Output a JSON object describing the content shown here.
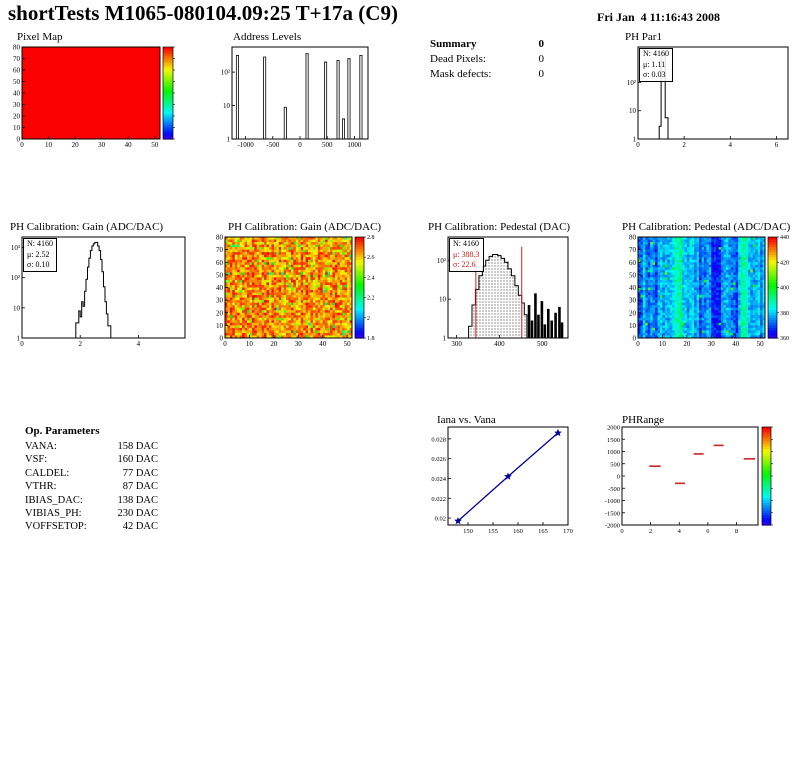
{
  "header": {
    "title": "shortTests M1065-080104.09:25 T+17a (C9)",
    "date": "Fri Jan  4 11:16:43 2008"
  },
  "summary": {
    "title": "Summary",
    "total": "0",
    "rows": [
      {
        "label": "Dead Pixels:",
        "value": "0"
      },
      {
        "label": "Mask defects:",
        "value": "0"
      }
    ]
  },
  "op_parameters": {
    "title": "Op. Parameters",
    "rows": [
      {
        "label": "VANA:",
        "value": "158 DAC"
      },
      {
        "label": "VSF:",
        "value": "160 DAC"
      },
      {
        "label": "CALDEL:",
        "value": "77 DAC"
      },
      {
        "label": "VTHR:",
        "value": "87 DAC"
      },
      {
        "label": "IBIAS_DAC:",
        "value": "138 DAC"
      },
      {
        "label": "VIBIAS_PH:",
        "value": "230 DAC"
      },
      {
        "label": "VOFFSETOP:",
        "value": "42 DAC"
      }
    ]
  },
  "colors": {
    "uniform_red": "#fa0000",
    "accent_red": "#d42020",
    "line_blue": "#00009a"
  },
  "chart_data": [
    {
      "id": "pixel-map",
      "type": "uniform-heatmap",
      "title": "Pixel Map",
      "xlim": [
        0,
        52
      ],
      "xticks": [
        0,
        10,
        20,
        30,
        40,
        50
      ],
      "ylim": [
        0,
        80
      ],
      "yticks": [
        0,
        10,
        20,
        30,
        40,
        50,
        60,
        70,
        80
      ],
      "fill_color": "#fa0000",
      "colorbar": true
    },
    {
      "id": "address-levels",
      "type": "spikes-log",
      "title": "Address Levels",
      "xlim": [
        -1250,
        1250
      ],
      "xticks": [
        -1000,
        -500,
        0,
        500,
        1000
      ],
      "dmax": 2.75,
      "ylog_labels": [
        "1",
        "10",
        "10²"
      ],
      "spike_width": 40,
      "spikes": [
        [
          -1150,
          2.5
        ],
        [
          -650,
          2.45
        ],
        [
          -270,
          0.95
        ],
        [
          130,
          2.55
        ],
        [
          470,
          2.3
        ],
        [
          700,
          2.35
        ],
        [
          800,
          0.6
        ],
        [
          900,
          2.4
        ],
        [
          1120,
          2.5
        ]
      ]
    },
    {
      "id": "ph-par1",
      "type": "outline-log",
      "title": "PH Par1",
      "stats": {
        "lines": [
          "N: 4160",
          "μ: 1.11",
          "σ: 0.03"
        ]
      },
      "xlim": [
        0,
        6.5
      ],
      "xticks": [
        0,
        2,
        4,
        6
      ],
      "dmax": 3.25,
      "ylog_labels": [
        "1",
        "10",
        "10²"
      ],
      "outline": [
        [
          0.92,
          0
        ],
        [
          0.92,
          0.45
        ],
        [
          1.0,
          0.45
        ],
        [
          1.0,
          3.05
        ],
        [
          1.18,
          3.05
        ],
        [
          1.18,
          0.75
        ],
        [
          1.3,
          0.75
        ],
        [
          1.3,
          0
        ]
      ]
    },
    {
      "id": "gain-hist",
      "type": "outline-log",
      "title": "PH Calibration: Gain (ADC/DAC)",
      "stats": {
        "lines": [
          "N: 4160",
          "μ: 2.52",
          "σ: 0.10"
        ]
      },
      "xlim": [
        0,
        5.6
      ],
      "xticks": [
        0,
        2,
        4
      ],
      "dmax": 3.35,
      "ylog_labels": [
        "1",
        "10",
        "10²",
        "10³"
      ],
      "outline": [
        [
          1.85,
          0
        ],
        [
          1.85,
          0.5
        ],
        [
          1.95,
          0.5
        ],
        [
          1.95,
          0.9
        ],
        [
          2.0,
          0.9
        ],
        [
          2.0,
          0.7
        ],
        [
          2.05,
          0.7
        ],
        [
          2.05,
          1.2
        ],
        [
          2.1,
          1.2
        ],
        [
          2.1,
          1.05
        ],
        [
          2.15,
          1.05
        ],
        [
          2.15,
          1.55
        ],
        [
          2.2,
          1.55
        ],
        [
          2.2,
          1.95
        ],
        [
          2.25,
          1.95
        ],
        [
          2.25,
          2.35
        ],
        [
          2.3,
          2.35
        ],
        [
          2.3,
          2.65
        ],
        [
          2.35,
          2.65
        ],
        [
          2.35,
          2.9
        ],
        [
          2.4,
          2.9
        ],
        [
          2.4,
          3.05
        ],
        [
          2.45,
          3.05
        ],
        [
          2.45,
          3.12
        ],
        [
          2.5,
          3.12
        ],
        [
          2.5,
          3.17
        ],
        [
          2.6,
          3.17
        ],
        [
          2.6,
          3.05
        ],
        [
          2.65,
          3.05
        ],
        [
          2.65,
          2.9
        ],
        [
          2.7,
          2.9
        ],
        [
          2.7,
          2.6
        ],
        [
          2.75,
          2.6
        ],
        [
          2.75,
          2.2
        ],
        [
          2.8,
          2.2
        ],
        [
          2.8,
          1.7
        ],
        [
          2.85,
          1.7
        ],
        [
          2.85,
          1.2
        ],
        [
          2.9,
          1.2
        ],
        [
          2.9,
          0.8
        ],
        [
          2.95,
          0.8
        ],
        [
          2.95,
          0.4
        ],
        [
          3.05,
          0.4
        ],
        [
          3.05,
          0
        ]
      ]
    },
    {
      "id": "gain-map",
      "type": "noise-heatmap",
      "title": "PH Calibration: Gain (ADC/DAC)",
      "xlim": [
        0,
        52
      ],
      "xticks": [
        0,
        10,
        20,
        30,
        40,
        50
      ],
      "ylim": [
        0,
        80
      ],
      "yticks": [
        0,
        10,
        20,
        30,
        40,
        50,
        60,
        70,
        80
      ],
      "palette": "high",
      "seed": 42,
      "cbar_labels": [
        "2.8",
        "2.6",
        "2.4",
        "2.2",
        "2",
        "1.8"
      ]
    },
    {
      "id": "pedestal-hist",
      "type": "outline-log",
      "title": "PH Calibration: Pedestal (DAC)",
      "stats": {
        "lines": [
          "N: 4160",
          "μ: 388.3",
          "σ: 22.6"
        ],
        "accent": "#d42020"
      },
      "xlim": [
        280,
        560
      ],
      "xticks": [
        300,
        400,
        500
      ],
      "dmax": 2.6,
      "ylog_labels": [
        "1",
        "10",
        "10²"
      ],
      "fill": "dots",
      "red_lines": [
        345,
        452
      ],
      "red_line_top": 2.35,
      "outline": [
        [
          328,
          0
        ],
        [
          328,
          0.3
        ],
        [
          336,
          0.3
        ],
        [
          336,
          0.85
        ],
        [
          344,
          0.85
        ],
        [
          344,
          1.25
        ],
        [
          352,
          1.25
        ],
        [
          352,
          1.6
        ],
        [
          360,
          1.6
        ],
        [
          360,
          1.85
        ],
        [
          368,
          1.85
        ],
        [
          368,
          2.0
        ],
        [
          376,
          2.0
        ],
        [
          376,
          2.1
        ],
        [
          384,
          2.1
        ],
        [
          384,
          2.15
        ],
        [
          396,
          2.15
        ],
        [
          396,
          2.12
        ],
        [
          404,
          2.12
        ],
        [
          404,
          2.05
        ],
        [
          412,
          2.05
        ],
        [
          412,
          1.95
        ],
        [
          420,
          1.95
        ],
        [
          420,
          1.78
        ],
        [
          428,
          1.78
        ],
        [
          428,
          1.6
        ],
        [
          436,
          1.6
        ],
        [
          436,
          1.35
        ],
        [
          444,
          1.35
        ],
        [
          444,
          1.1
        ],
        [
          452,
          1.1
        ],
        [
          452,
          0.9
        ],
        [
          458,
          0.9
        ],
        [
          458,
          0.6
        ],
        [
          464,
          0.6
        ],
        [
          464,
          0
        ]
      ],
      "tail_bars": [
        [
          466,
          0.85
        ],
        [
          473,
          0.45
        ],
        [
          481,
          1.15
        ],
        [
          488,
          0.6
        ],
        [
          496,
          0.95
        ],
        [
          503,
          0.35
        ],
        [
          511,
          0.75
        ],
        [
          519,
          0.45
        ],
        [
          528,
          0.65
        ],
        [
          537,
          0.8
        ],
        [
          543,
          0.4
        ]
      ]
    },
    {
      "id": "pedestal-map",
      "type": "noise-heatmap",
      "title": "PH Calibration: Pedestal (ADC/DAC)",
      "xlim": [
        0,
        52
      ],
      "xticks": [
        0,
        10,
        20,
        30,
        40,
        50
      ],
      "ylim": [
        0,
        80
      ],
      "yticks": [
        0,
        10,
        20,
        30,
        40,
        50,
        60,
        70,
        80
      ],
      "palette": "low",
      "seed": 7,
      "cbar_labels": [
        "440",
        "420",
        "400",
        "380",
        "360"
      ]
    },
    {
      "id": "iana-vana",
      "type": "line",
      "title": "Iana vs. Vana",
      "x": [
        148,
        158,
        168
      ],
      "y": [
        0.0197,
        0.0242,
        0.0286
      ],
      "xlim": [
        146,
        170
      ],
      "xticks": [
        150,
        155,
        160,
        165,
        170
      ],
      "ylim": [
        0.0193,
        0.0292
      ],
      "yticks": [
        0.02,
        0.022,
        0.024,
        0.026,
        0.028
      ],
      "line_color": "#00009a",
      "marker": "star"
    },
    {
      "id": "phrange",
      "type": "dash-scatter",
      "title": "PHRange",
      "xlim": [
        0,
        9.5
      ],
      "xticks": [
        0,
        2,
        4,
        6,
        8
      ],
      "ylim": [
        -2000,
        2000
      ],
      "yticks": [
        2000,
        1500,
        1000,
        500,
        0,
        -500,
        -1000,
        -1500,
        -2000
      ],
      "dash_color": "#cc2222",
      "dashes": [
        [
          1.9,
          2.7,
          400
        ],
        [
          3.7,
          4.4,
          -300
        ],
        [
          5.0,
          5.7,
          900
        ],
        [
          6.4,
          7.1,
          1250
        ],
        [
          8.5,
          9.3,
          700
        ]
      ],
      "colorbar": true
    }
  ]
}
